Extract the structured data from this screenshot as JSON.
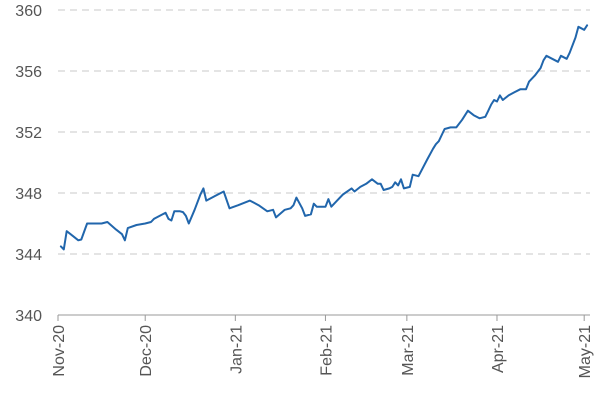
{
  "chart_data": {
    "type": "line",
    "title": "",
    "xlabel": "",
    "ylabel": "",
    "ylim": [
      340,
      360
    ],
    "yticks": [
      340,
      344,
      348,
      352,
      356,
      360
    ],
    "xlim": [
      "2020-11-01",
      "2021-05-03"
    ],
    "xticks": [
      {
        "date": "2020-11-01",
        "label": "Nov-20"
      },
      {
        "date": "2020-12-01",
        "label": "Dec-20"
      },
      {
        "date": "2021-01-01",
        "label": "Jan-21"
      },
      {
        "date": "2021-02-01",
        "label": "Feb-21"
      },
      {
        "date": "2021-03-01",
        "label": "Mar-21"
      },
      {
        "date": "2021-04-01",
        "label": "Apr-21"
      },
      {
        "date": "2021-05-01",
        "label": "May-21"
      }
    ],
    "grid": true,
    "line_color": "#2166ac",
    "series": [
      {
        "name": "",
        "points": [
          [
            "2020-11-02",
            344.5
          ],
          [
            "2020-11-03",
            344.3
          ],
          [
            "2020-11-04",
            345.5
          ],
          [
            "2020-11-06",
            345.2
          ],
          [
            "2020-11-08",
            344.9
          ],
          [
            "2020-11-09",
            344.95
          ],
          [
            "2020-11-11",
            346.0
          ],
          [
            "2020-11-13",
            346.0
          ],
          [
            "2020-11-16",
            346.0
          ],
          [
            "2020-11-18",
            346.1
          ],
          [
            "2020-11-21",
            345.6
          ],
          [
            "2020-11-23",
            345.3
          ],
          [
            "2020-11-24",
            344.9
          ],
          [
            "2020-11-25",
            345.7
          ],
          [
            "2020-11-28",
            345.9
          ],
          [
            "2020-12-01",
            346.0
          ],
          [
            "2020-12-03",
            346.1
          ],
          [
            "2020-12-04",
            346.3
          ],
          [
            "2020-12-07",
            346.6
          ],
          [
            "2020-12-08",
            346.7
          ],
          [
            "2020-12-09",
            346.3
          ],
          [
            "2020-12-10",
            346.2
          ],
          [
            "2020-12-11",
            346.8
          ],
          [
            "2020-12-13",
            346.8
          ],
          [
            "2020-12-14",
            346.75
          ],
          [
            "2020-12-15",
            346.5
          ],
          [
            "2020-12-16",
            346.0
          ],
          [
            "2020-12-18",
            346.9
          ],
          [
            "2020-12-20",
            347.9
          ],
          [
            "2020-12-21",
            348.3
          ],
          [
            "2020-12-22",
            347.5
          ],
          [
            "2020-12-25",
            347.8
          ],
          [
            "2020-12-28",
            348.1
          ],
          [
            "2020-12-30",
            347.0
          ],
          [
            "2021-01-02",
            347.2
          ],
          [
            "2021-01-06",
            347.5
          ],
          [
            "2021-01-09",
            347.2
          ],
          [
            "2021-01-12",
            346.8
          ],
          [
            "2021-01-14",
            346.9
          ],
          [
            "2021-01-15",
            346.4
          ],
          [
            "2021-01-18",
            346.9
          ],
          [
            "2021-01-20",
            347.0
          ],
          [
            "2021-01-21",
            347.2
          ],
          [
            "2021-01-22",
            347.7
          ],
          [
            "2021-01-24",
            347.0
          ],
          [
            "2021-01-25",
            346.5
          ],
          [
            "2021-01-27",
            346.6
          ],
          [
            "2021-01-28",
            347.3
          ],
          [
            "2021-01-29",
            347.1
          ],
          [
            "2021-02-01",
            347.1
          ],
          [
            "2021-02-02",
            347.6
          ],
          [
            "2021-02-03",
            347.1
          ],
          [
            "2021-02-05",
            347.5
          ],
          [
            "2021-02-07",
            347.9
          ],
          [
            "2021-02-10",
            348.3
          ],
          [
            "2021-02-11",
            348.1
          ],
          [
            "2021-02-13",
            348.4
          ],
          [
            "2021-02-15",
            348.6
          ],
          [
            "2021-02-17",
            348.9
          ],
          [
            "2021-02-19",
            348.6
          ],
          [
            "2021-02-20",
            348.6
          ],
          [
            "2021-02-21",
            348.2
          ],
          [
            "2021-02-23",
            348.3
          ],
          [
            "2021-02-24",
            348.4
          ],
          [
            "2021-02-25",
            348.7
          ],
          [
            "2021-02-26",
            348.5
          ],
          [
            "2021-02-27",
            348.9
          ],
          [
            "2021-02-28",
            348.3
          ],
          [
            "2021-03-02",
            348.4
          ],
          [
            "2021-03-03",
            349.2
          ],
          [
            "2021-03-05",
            349.1
          ],
          [
            "2021-03-08",
            350.2
          ],
          [
            "2021-03-10",
            350.9
          ],
          [
            "2021-03-11",
            351.2
          ],
          [
            "2021-03-12",
            351.4
          ],
          [
            "2021-03-14",
            352.2
          ],
          [
            "2021-03-16",
            352.3
          ],
          [
            "2021-03-18",
            352.3
          ],
          [
            "2021-03-20",
            352.8
          ],
          [
            "2021-03-22",
            353.4
          ],
          [
            "2021-03-24",
            353.1
          ],
          [
            "2021-03-26",
            352.9
          ],
          [
            "2021-03-28",
            353.0
          ],
          [
            "2021-03-29",
            353.4
          ],
          [
            "2021-03-30",
            353.8
          ],
          [
            "2021-03-31",
            354.1
          ],
          [
            "2021-04-01",
            354.0
          ],
          [
            "2021-04-02",
            354.4
          ],
          [
            "2021-04-03",
            354.1
          ],
          [
            "2021-04-05",
            354.4
          ],
          [
            "2021-04-07",
            354.6
          ],
          [
            "2021-04-09",
            354.8
          ],
          [
            "2021-04-11",
            354.8
          ],
          [
            "2021-04-12",
            355.3
          ],
          [
            "2021-04-14",
            355.7
          ],
          [
            "2021-04-16",
            356.2
          ],
          [
            "2021-04-17",
            356.7
          ],
          [
            "2021-04-18",
            357.0
          ],
          [
            "2021-04-20",
            356.8
          ],
          [
            "2021-04-21",
            356.7
          ],
          [
            "2021-04-22",
            356.6
          ],
          [
            "2021-04-23",
            357.0
          ],
          [
            "2021-04-25",
            356.8
          ],
          [
            "2021-04-26",
            357.2
          ],
          [
            "2021-04-28",
            358.2
          ],
          [
            "2021-04-29",
            358.9
          ],
          [
            "2021-04-30",
            358.8
          ],
          [
            "2021-05-01",
            358.7
          ],
          [
            "2021-05-02",
            359.0
          ]
        ]
      }
    ]
  }
}
